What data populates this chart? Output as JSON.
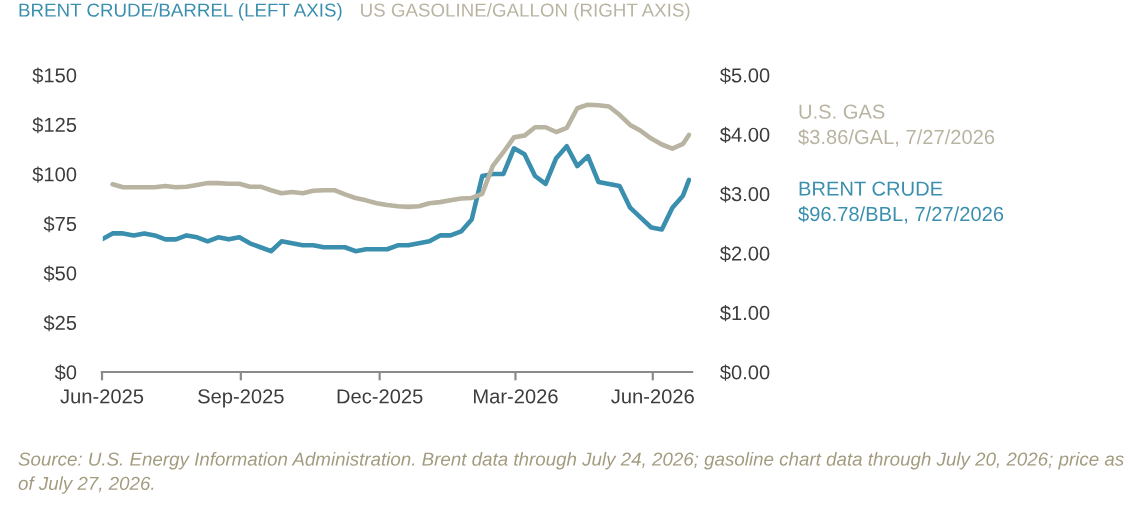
{
  "chart_data": {
    "type": "line",
    "legend": "top left",
    "x": [
      "2025-06-30",
      "2025-07-07",
      "2025-07-14",
      "2025-07-21",
      "2025-07-28",
      "2025-08-04",
      "2025-08-11",
      "2025-08-18",
      "2025-08-25",
      "2025-09-01",
      "2025-09-08",
      "2025-09-15",
      "2025-09-22",
      "2025-09-29",
      "2025-10-06",
      "2025-10-13",
      "2025-10-20",
      "2025-10-27",
      "2025-11-03",
      "2025-11-10",
      "2025-11-17",
      "2025-11-24",
      "2025-12-01",
      "2025-12-08",
      "2025-12-15",
      "2025-12-22",
      "2025-12-29",
      "2026-01-05",
      "2026-01-12",
      "2026-01-19",
      "2026-01-26",
      "2026-02-02",
      "2026-02-09",
      "2026-02-16",
      "2026-02-23",
      "2026-03-02",
      "2026-03-09",
      "2026-03-16",
      "2026-03-23",
      "2026-03-30",
      "2026-04-06",
      "2026-04-13",
      "2026-04-20",
      "2026-04-27",
      "2026-05-04",
      "2026-05-11",
      "2026-05-18",
      "2026-05-25",
      "2026-06-01",
      "2026-06-08",
      "2026-06-15",
      "2026-06-22",
      "2026-06-29",
      "2026-07-06",
      "2026-07-13",
      "2026-07-20",
      "2026-07-24"
    ],
    "xlim": [
      "2025-06-30",
      "2026-07-26"
    ],
    "xticks": [
      {
        "value": "2025-06-30",
        "label": "Jun-2025"
      },
      {
        "value": "2025-09-30",
        "label": "Sep-2025"
      },
      {
        "value": "2025-12-31",
        "label": "Dec-2025"
      },
      {
        "value": "2026-03-31",
        "label": "Mar-2026"
      },
      {
        "value": "2026-06-30",
        "label": "Jun-2026"
      }
    ],
    "ylim": [
      0,
      150
    ],
    "yticks": [
      {
        "value": 0,
        "label": "$0"
      },
      {
        "value": 25,
        "label": "$25"
      },
      {
        "value": 50,
        "label": "$50"
      },
      {
        "value": 75,
        "label": "$75"
      },
      {
        "value": 100,
        "label": "$100"
      },
      {
        "value": 125,
        "label": "$125"
      },
      {
        "value": 150,
        "label": "$150"
      }
    ],
    "y2lim": [
      0,
      5
    ],
    "y2ticks": [
      {
        "value": 0,
        "label": "$0.00"
      },
      {
        "value": 1,
        "label": "$1.00"
      },
      {
        "value": 2,
        "label": "$2.00"
      },
      {
        "value": 3,
        "label": "$3.00"
      },
      {
        "value": 4,
        "label": "$4.00"
      },
      {
        "value": 5,
        "label": "$5.00"
      }
    ],
    "series": [
      {
        "name": "BRENT CRUDE/BARREL (LEFT AXIS)",
        "color": "#3a8fae",
        "values": [
          67,
          70,
          70,
          69,
          70,
          69,
          67,
          67,
          69,
          68,
          66,
          68,
          67,
          68,
          65,
          63,
          61,
          66,
          65,
          64,
          64,
          63,
          63,
          63,
          61,
          62,
          62,
          62,
          64,
          64,
          65,
          66,
          69,
          69,
          71,
          77,
          99,
          100,
          100,
          113,
          110,
          99,
          95,
          108,
          114,
          104,
          109,
          96,
          95,
          94,
          83,
          78,
          73,
          72,
          83,
          89,
          97
        ]
      },
      {
        "name": "US GASOLINE/GALLON (RIGHT AXIS)",
        "color": "#b9b3a1",
        "axis": "y2",
        "values": [
          null,
          3.16,
          3.11,
          3.11,
          3.11,
          3.11,
          3.13,
          3.11,
          3.12,
          3.15,
          3.18,
          3.18,
          3.17,
          3.17,
          3.12,
          3.12,
          3.06,
          3.01,
          3.03,
          3.01,
          3.05,
          3.06,
          3.06,
          2.99,
          2.93,
          2.89,
          2.84,
          2.81,
          2.79,
          2.78,
          2.79,
          2.84,
          2.86,
          2.89,
          2.92,
          2.93,
          3.0,
          3.47,
          3.7,
          3.95,
          3.98,
          4.12,
          4.12,
          4.04,
          4.11,
          4.44,
          4.5,
          4.49,
          4.47,
          4.33,
          4.16,
          4.06,
          3.93,
          3.83,
          3.76,
          3.84,
          3.99
        ]
      }
    ],
    "annotations": [
      "U.S. GAS\n$3.86/GAL, 7/27/2026",
      "BRENT CRUDE\n$96.78/BBL, 7/27/2026",
      "Source: U.S. Energy Information Administration. Brent data through July 24, 2026; gasoline chart data through July 20, 2026; price as of July 27, 2026."
    ]
  }
}
